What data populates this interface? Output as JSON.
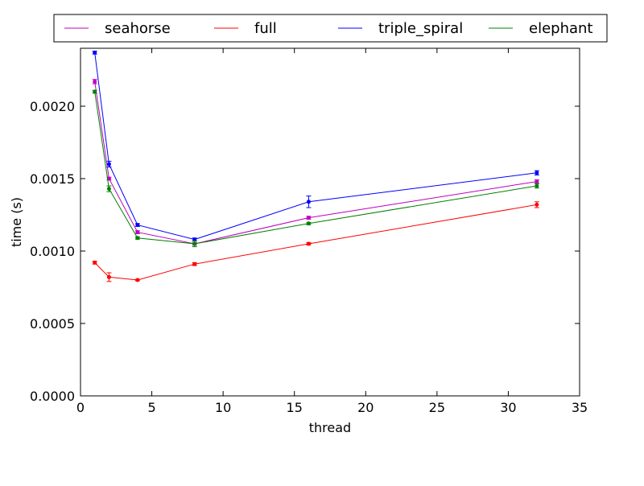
{
  "chart_data": {
    "type": "line",
    "title": "",
    "xlabel": "thread",
    "ylabel": "time (s)",
    "xlim": [
      0,
      35
    ],
    "ylim": [
      0,
      0.0024
    ],
    "x_ticks": [
      0,
      5,
      10,
      15,
      20,
      25,
      30,
      35
    ],
    "x_tick_labels": [
      "0",
      "5",
      "10",
      "15",
      "20",
      "25",
      "30",
      "35"
    ],
    "y_ticks": [
      0,
      0.0005,
      0.001,
      0.0015,
      0.002
    ],
    "y_tick_labels": [
      "0.0000",
      "0.0005",
      "0.0010",
      "0.0015",
      "0.0020"
    ],
    "grid": false,
    "legend_position": "top, outside plot area",
    "x": [
      1,
      2,
      4,
      8,
      16,
      32
    ],
    "series": [
      {
        "name": "seahorse",
        "color": "#bf00bf",
        "values": [
          0.00217,
          0.0015,
          0.00113,
          0.00105,
          0.00123,
          0.00148
        ],
        "errors": [
          1.5e-05,
          1e-05,
          1e-05,
          1e-05,
          1e-05,
          1.2e-05
        ]
      },
      {
        "name": "full",
        "color": "#ff0000",
        "values": [
          0.00092,
          0.00082,
          0.0008,
          0.00091,
          0.00105,
          0.00132
        ],
        "errors": [
          1e-05,
          3e-05,
          5e-06,
          1e-05,
          8e-06,
          2e-05
        ]
      },
      {
        "name": "triple_spiral",
        "color": "#0000ff",
        "values": [
          0.00237,
          0.0016,
          0.00118,
          0.00108,
          0.00134,
          0.00154
        ],
        "errors": [
          1e-05,
          2e-05,
          1e-05,
          1e-05,
          4e-05,
          1.5e-05
        ]
      },
      {
        "name": "elephant",
        "color": "#008000",
        "values": [
          0.0021,
          0.00143,
          0.00109,
          0.00105,
          0.00119,
          0.00145
        ],
        "errors": [
          1e-05,
          2e-05,
          8e-06,
          2e-05,
          8e-06,
          1.5e-05
        ]
      }
    ]
  }
}
